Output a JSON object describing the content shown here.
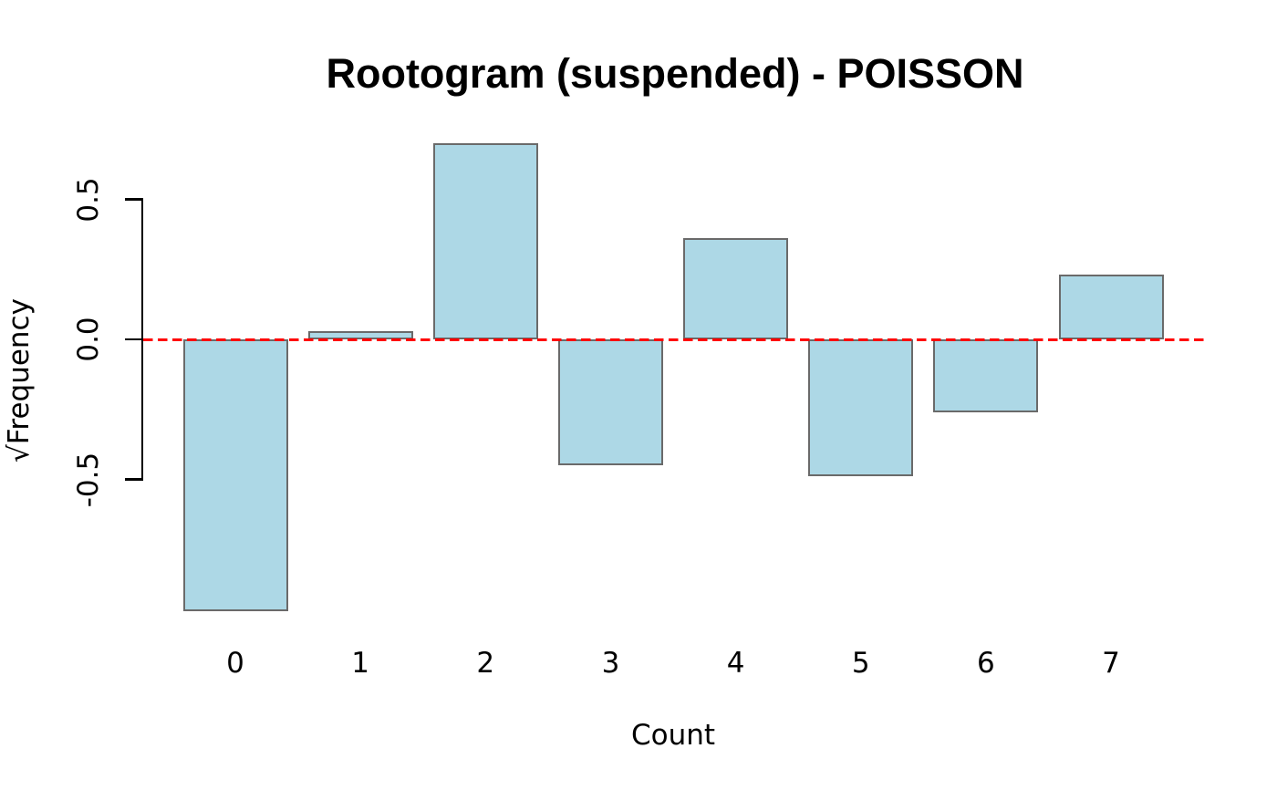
{
  "chart_data": {
    "type": "bar",
    "title": "Rootogram (suspended) - POISSON",
    "xlabel": "Count",
    "ylabel": "√Frequency",
    "categories": [
      "0",
      "1",
      "2",
      "3",
      "4",
      "5",
      "6",
      "7"
    ],
    "values": [
      -0.97,
      0.03,
      0.7,
      -0.45,
      0.36,
      -0.49,
      -0.26,
      0.23
    ],
    "yticks": [
      {
        "value": 0.5,
        "label": "0.5"
      },
      {
        "value": 0.0,
        "label": "0.0"
      },
      {
        "value": -0.5,
        "label": "-0.5"
      }
    ],
    "ylim": [
      -1.0,
      0.72
    ],
    "xlim": [
      -0.5,
      7.5
    ],
    "grid": false,
    "legend": null,
    "reference_line": {
      "y": 0.0,
      "style": "dashed",
      "color": "#ff0000"
    },
    "colors": {
      "bar_fill": "#add8e6",
      "bar_edge": "#6a6a6a",
      "axis": "#000000",
      "text": "#000000",
      "background": "#ffffff"
    }
  }
}
